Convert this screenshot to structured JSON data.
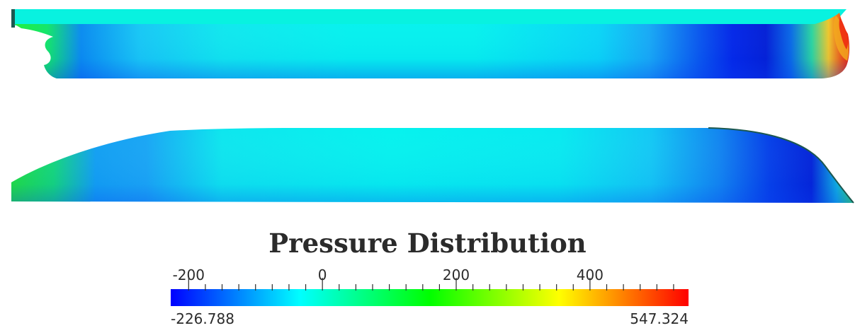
{
  "colorbar": {
    "title": "Pressure Distribution",
    "min_label": "-226.788",
    "max_label": "547.324",
    "min": -226.788,
    "max": 547.324,
    "major_ticks": [
      {
        "value": -200,
        "label": "-200"
      },
      {
        "value": 0,
        "label": "0"
      },
      {
        "value": 200,
        "label": "200"
      },
      {
        "value": 400,
        "label": "400"
      }
    ],
    "minor_tick_step": 25,
    "colormap": [
      "#0000ff",
      "#00ffff",
      "#00ff00",
      "#ffff00",
      "#ff0000"
    ]
  },
  "colors": {
    "background": "#ffffff",
    "text": "#2b2b2b",
    "hull_edge": "#1c5850"
  }
}
